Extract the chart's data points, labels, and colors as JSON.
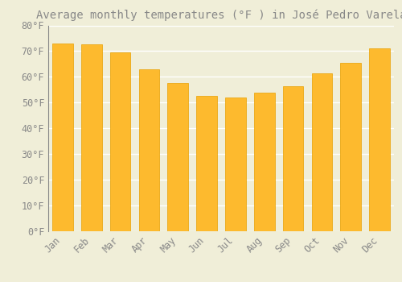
{
  "title": "Average monthly temperatures (°F ) in José Pedro Varela",
  "months": [
    "Jan",
    "Feb",
    "Mar",
    "Apr",
    "May",
    "Jun",
    "Jul",
    "Aug",
    "Sep",
    "Oct",
    "Nov",
    "Dec"
  ],
  "values": [
    73,
    72.5,
    69.5,
    63,
    57.5,
    52.5,
    52,
    54,
    56.5,
    61.5,
    65.5,
    71
  ],
  "bar_color": "#FDBA2E",
  "bar_edge_color": "#E8A000",
  "background_color": "#F0EED8",
  "grid_color": "#FFFFFF",
  "ylim": [
    0,
    80
  ],
  "title_fontsize": 10,
  "tick_fontsize": 8.5,
  "font_color": "#888888"
}
